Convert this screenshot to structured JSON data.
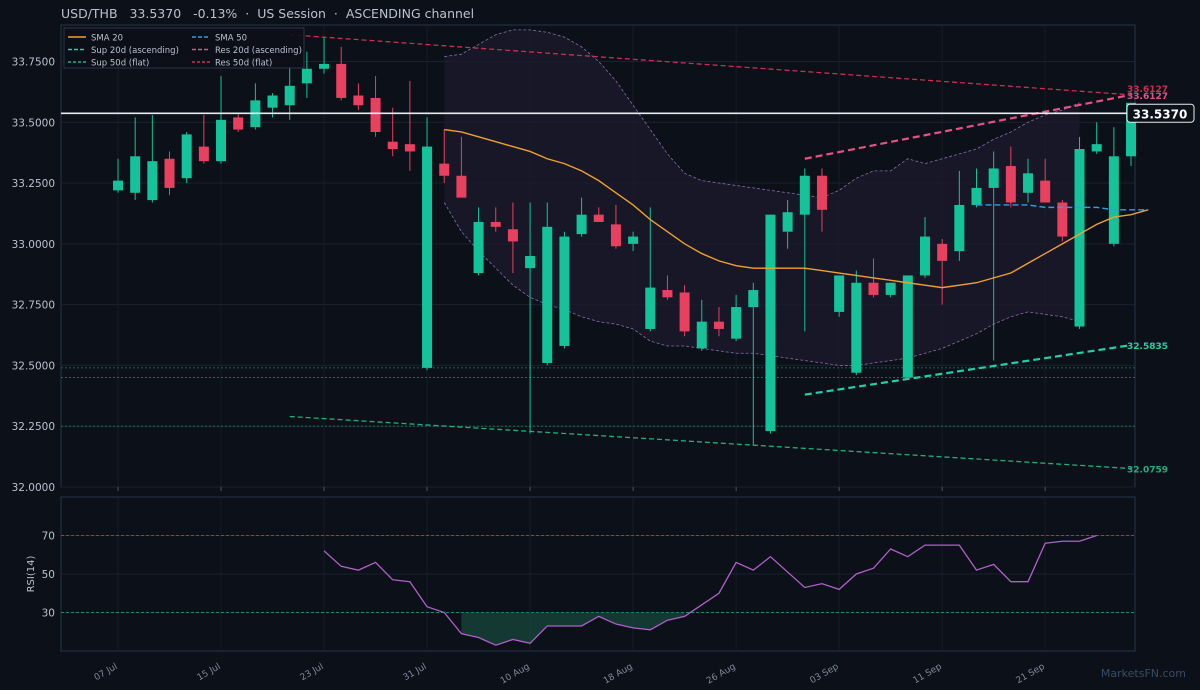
{
  "header": {
    "symbol": "USD/THB",
    "price": "33.5370",
    "change": "-0.13%",
    "session": "US Session",
    "channel": "ASCENDING channel",
    "sep": "·"
  },
  "watermark": "MarketsFN.com",
  "colors": {
    "background": "#0c1018",
    "up": "#15c39a",
    "down": "#e8405f",
    "sma20": "#f0a030",
    "sma50": "#2aa0e0",
    "res_asc": "#e8508a",
    "res_flat": "#c83050",
    "sup_asc": "#20d0a8",
    "sup_flat": "#20b080",
    "rsi": "#b060c8",
    "band": "#8a6aa8"
  },
  "chart_data": {
    "type": "candlestick",
    "title": "USD/THB 33.5370 -0.13% · US Session · ASCENDING channel",
    "ylim": [
      32.0,
      33.9
    ],
    "y_ticks": [
      "32.0000",
      "32.2500",
      "32.5000",
      "32.7500",
      "33.0000",
      "33.2500",
      "33.5000",
      "33.7500"
    ],
    "x_ticks": [
      {
        "label": "07 Jul",
        "i": 0
      },
      {
        "label": "15 Jul",
        "i": 6
      },
      {
        "label": "23 Jul",
        "i": 12
      },
      {
        "label": "31 Jul",
        "i": 18
      },
      {
        "label": "10 Aug",
        "i": 24
      },
      {
        "label": "18 Aug",
        "i": 30
      },
      {
        "label": "26 Aug",
        "i": 36
      },
      {
        "label": "03 Sep",
        "i": 42
      },
      {
        "label": "11 Sep",
        "i": 48
      },
      {
        "label": "21 Sep",
        "i": 54
      }
    ],
    "candles": [
      {
        "o": 33.22,
        "h": 33.35,
        "l": 33.21,
        "c": 33.26
      },
      {
        "o": 33.21,
        "h": 33.52,
        "l": 33.18,
        "c": 33.36
      },
      {
        "o": 33.18,
        "h": 33.53,
        "l": 33.17,
        "c": 33.34
      },
      {
        "o": 33.35,
        "h": 33.38,
        "l": 33.2,
        "c": 33.23
      },
      {
        "o": 33.27,
        "h": 33.46,
        "l": 33.25,
        "c": 33.45
      },
      {
        "o": 33.4,
        "h": 33.53,
        "l": 33.33,
        "c": 33.34
      },
      {
        "o": 33.34,
        "h": 33.69,
        "l": 33.33,
        "c": 33.51
      },
      {
        "o": 33.52,
        "h": 33.54,
        "l": 33.46,
        "c": 33.47
      },
      {
        "o": 33.48,
        "h": 33.66,
        "l": 33.47,
        "c": 33.59
      },
      {
        "o": 33.56,
        "h": 33.62,
        "l": 33.52,
        "c": 33.61
      },
      {
        "o": 33.57,
        "h": 33.73,
        "l": 33.51,
        "c": 33.65
      },
      {
        "o": 33.66,
        "h": 33.79,
        "l": 33.6,
        "c": 33.72
      },
      {
        "o": 33.72,
        "h": 33.85,
        "l": 33.7,
        "c": 33.74
      },
      {
        "o": 33.74,
        "h": 33.81,
        "l": 33.59,
        "c": 33.6
      },
      {
        "o": 33.61,
        "h": 33.66,
        "l": 33.55,
        "c": 33.57
      },
      {
        "o": 33.6,
        "h": 33.69,
        "l": 33.44,
        "c": 33.46
      },
      {
        "o": 33.42,
        "h": 33.56,
        "l": 33.36,
        "c": 33.39
      },
      {
        "o": 33.41,
        "h": 33.67,
        "l": 33.3,
        "c": 33.38
      },
      {
        "o": 32.49,
        "h": 33.52,
        "l": 32.48,
        "c": 33.4
      },
      {
        "o": 33.33,
        "h": 33.47,
        "l": 33.25,
        "c": 33.28
      },
      {
        "o": 33.28,
        "h": 33.44,
        "l": 33.19,
        "c": 33.19
      },
      {
        "o": 32.88,
        "h": 33.15,
        "l": 32.87,
        "c": 33.09
      },
      {
        "o": 33.09,
        "h": 33.15,
        "l": 33.05,
        "c": 33.07
      },
      {
        "o": 33.06,
        "h": 33.17,
        "l": 32.88,
        "c": 33.01
      },
      {
        "o": 32.9,
        "h": 33.17,
        "l": 32.22,
        "c": 32.95
      },
      {
        "o": 32.51,
        "h": 33.17,
        "l": 32.5,
        "c": 33.07
      },
      {
        "o": 32.58,
        "h": 33.05,
        "l": 32.57,
        "c": 33.03
      },
      {
        "o": 33.04,
        "h": 33.19,
        "l": 33.03,
        "c": 33.12
      },
      {
        "o": 33.12,
        "h": 33.15,
        "l": 33.09,
        "c": 33.09
      },
      {
        "o": 33.08,
        "h": 33.16,
        "l": 32.98,
        "c": 32.99
      },
      {
        "o": 33.0,
        "h": 33.05,
        "l": 32.97,
        "c": 33.03
      },
      {
        "o": 32.65,
        "h": 33.15,
        "l": 32.64,
        "c": 32.82
      },
      {
        "o": 32.81,
        "h": 32.87,
        "l": 32.77,
        "c": 32.78
      },
      {
        "o": 32.8,
        "h": 32.83,
        "l": 32.62,
        "c": 32.64
      },
      {
        "o": 32.57,
        "h": 32.77,
        "l": 32.56,
        "c": 32.68
      },
      {
        "o": 32.68,
        "h": 32.74,
        "l": 32.62,
        "c": 32.65
      },
      {
        "o": 32.61,
        "h": 32.79,
        "l": 32.6,
        "c": 32.74
      },
      {
        "o": 32.74,
        "h": 32.84,
        "l": 32.17,
        "c": 32.81
      },
      {
        "o": 32.23,
        "h": 33.12,
        "l": 32.22,
        "c": 33.12
      },
      {
        "o": 33.05,
        "h": 33.18,
        "l": 32.98,
        "c": 33.13
      },
      {
        "o": 33.12,
        "h": 33.31,
        "l": 32.64,
        "c": 33.28
      },
      {
        "o": 33.28,
        "h": 33.31,
        "l": 33.05,
        "c": 33.14
      },
      {
        "o": 32.72,
        "h": 32.87,
        "l": 32.7,
        "c": 32.87
      },
      {
        "o": 32.47,
        "h": 32.89,
        "l": 32.46,
        "c": 32.84
      },
      {
        "o": 32.84,
        "h": 32.94,
        "l": 32.78,
        "c": 32.79
      },
      {
        "o": 32.79,
        "h": 32.84,
        "l": 32.78,
        "c": 32.84
      },
      {
        "o": 32.45,
        "h": 32.87,
        "l": 32.44,
        "c": 32.87
      },
      {
        "o": 32.87,
        "h": 33.11,
        "l": 32.86,
        "c": 33.03
      },
      {
        "o": 33.0,
        "h": 33.02,
        "l": 32.75,
        "c": 32.93
      },
      {
        "o": 32.97,
        "h": 33.3,
        "l": 32.93,
        "c": 33.16
      },
      {
        "o": 33.16,
        "h": 33.31,
        "l": 33.15,
        "c": 33.23
      },
      {
        "o": 33.23,
        "h": 33.38,
        "l": 32.52,
        "c": 33.31
      },
      {
        "o": 33.32,
        "h": 33.4,
        "l": 33.15,
        "c": 33.17
      },
      {
        "o": 33.21,
        "h": 33.35,
        "l": 33.17,
        "c": 33.29
      },
      {
        "o": 33.26,
        "h": 33.35,
        "l": 33.17,
        "c": 33.17
      },
      {
        "o": 33.17,
        "h": 33.18,
        "l": 33.01,
        "c": 33.03
      },
      {
        "o": 32.66,
        "h": 33.44,
        "l": 32.65,
        "c": 33.39
      },
      {
        "o": 33.38,
        "h": 33.5,
        "l": 33.37,
        "c": 33.41
      },
      {
        "o": 33.0,
        "h": 33.48,
        "l": 32.99,
        "c": 33.36
      },
      {
        "o": 33.36,
        "h": 33.58,
        "l": 33.32,
        "c": 33.58
      }
    ],
    "series": [
      {
        "name": "SMA 20",
        "values": [
          null,
          null,
          null,
          null,
          null,
          null,
          null,
          null,
          null,
          null,
          null,
          null,
          null,
          null,
          null,
          null,
          null,
          null,
          null,
          33.47,
          33.46,
          33.44,
          33.42,
          33.4,
          33.38,
          33.35,
          33.33,
          33.3,
          33.26,
          33.21,
          33.16,
          33.1,
          33.05,
          33.0,
          32.96,
          32.93,
          32.91,
          32.9,
          32.9,
          32.9,
          32.9,
          32.89,
          32.88,
          32.87,
          32.86,
          32.85,
          32.84,
          32.83,
          32.82,
          32.83,
          32.84,
          32.86,
          32.88,
          32.92,
          32.96,
          33.0,
          33.04,
          33.08,
          33.11,
          33.12,
          33.14
        ]
      },
      {
        "name": "SMA 50",
        "values": [
          null,
          null,
          null,
          null,
          null,
          null,
          null,
          null,
          null,
          null,
          null,
          null,
          null,
          null,
          null,
          null,
          null,
          null,
          null,
          null,
          null,
          null,
          null,
          null,
          null,
          null,
          null,
          null,
          null,
          null,
          null,
          null,
          null,
          null,
          null,
          null,
          null,
          null,
          null,
          null,
          null,
          null,
          null,
          null,
          null,
          null,
          null,
          null,
          null,
          null,
          33.16,
          33.16,
          33.16,
          33.16,
          33.15,
          33.15,
          33.15,
          33.15,
          33.14,
          33.14,
          33.14
        ]
      }
    ],
    "bands": {
      "upper": [
        33.77,
        33.78,
        33.82,
        33.86,
        33.88,
        33.88,
        33.87,
        33.85,
        33.81,
        33.75,
        33.67,
        33.57,
        33.47,
        33.37,
        33.29,
        33.26,
        33.25,
        33.24,
        33.23,
        33.22,
        33.21,
        33.2,
        33.19,
        33.22,
        33.27,
        33.3,
        33.3,
        33.35,
        33.33,
        33.35,
        33.37,
        33.39,
        33.43,
        33.46,
        33.5,
        33.53,
        33.55,
        33.58
      ],
      "lower": [
        33.17,
        33.05,
        32.97,
        32.9,
        32.83,
        32.78,
        32.75,
        32.73,
        32.7,
        32.68,
        32.67,
        32.65,
        32.6,
        32.58,
        32.58,
        32.57,
        32.56,
        32.55,
        32.55,
        32.54,
        32.53,
        32.52,
        32.51,
        32.5,
        32.5,
        32.51,
        32.52,
        32.53,
        32.55,
        32.57,
        32.6,
        32.63,
        32.67,
        32.7,
        32.72,
        32.71,
        32.7,
        32.68
      ],
      "start_index": 19
    },
    "lines": [
      {
        "name": "Sup 20d (ascending)",
        "label": "32.5835",
        "from": {
          "i": 40,
          "y": 32.38
        },
        "to": {
          "i": 59,
          "y": 32.5835
        }
      },
      {
        "name": "Sup 50d (flat)",
        "label": "32.0759",
        "from": {
          "i": 10,
          "y": 32.29
        },
        "to": {
          "i": 59,
          "y": 32.0759
        }
      },
      {
        "name": "Res 20d (ascending)",
        "label": "33.6127",
        "from": {
          "i": 40,
          "y": 33.35
        },
        "to": {
          "i": 59,
          "y": 33.6127
        }
      },
      {
        "name": "Res 50d (flat)",
        "label": "33.6127",
        "from": {
          "i": 10,
          "y": 33.86
        },
        "to": {
          "i": 59,
          "y": 33.6127
        }
      }
    ],
    "flat_lines": [
      32.49,
      32.45,
      32.25
    ],
    "current_price": {
      "value": 33.537,
      "label": "33.5370"
    },
    "legend": {
      "placement": "top-left",
      "items": [
        "SMA 20",
        "SMA 50",
        "Sup 20d (ascending)",
        "Res 20d (ascending)",
        "Sup 50d (flat)",
        "Res 50d (flat)"
      ]
    },
    "rsi": {
      "ylabel": "RSI(14)",
      "y_ticks": [
        "30",
        "50",
        "70"
      ],
      "levels": [
        30,
        70
      ],
      "start_index": 12,
      "values": [
        62,
        54,
        52,
        56,
        47,
        46,
        33,
        30,
        19,
        17,
        13,
        16,
        14,
        23,
        23,
        23,
        28,
        24,
        22,
        21,
        26,
        28,
        34,
        40,
        56,
        52,
        59,
        51,
        43,
        45,
        42,
        50,
        53,
        63,
        59,
        65,
        65,
        65,
        52,
        55,
        46,
        46,
        66,
        67,
        67,
        70
      ]
    }
  }
}
